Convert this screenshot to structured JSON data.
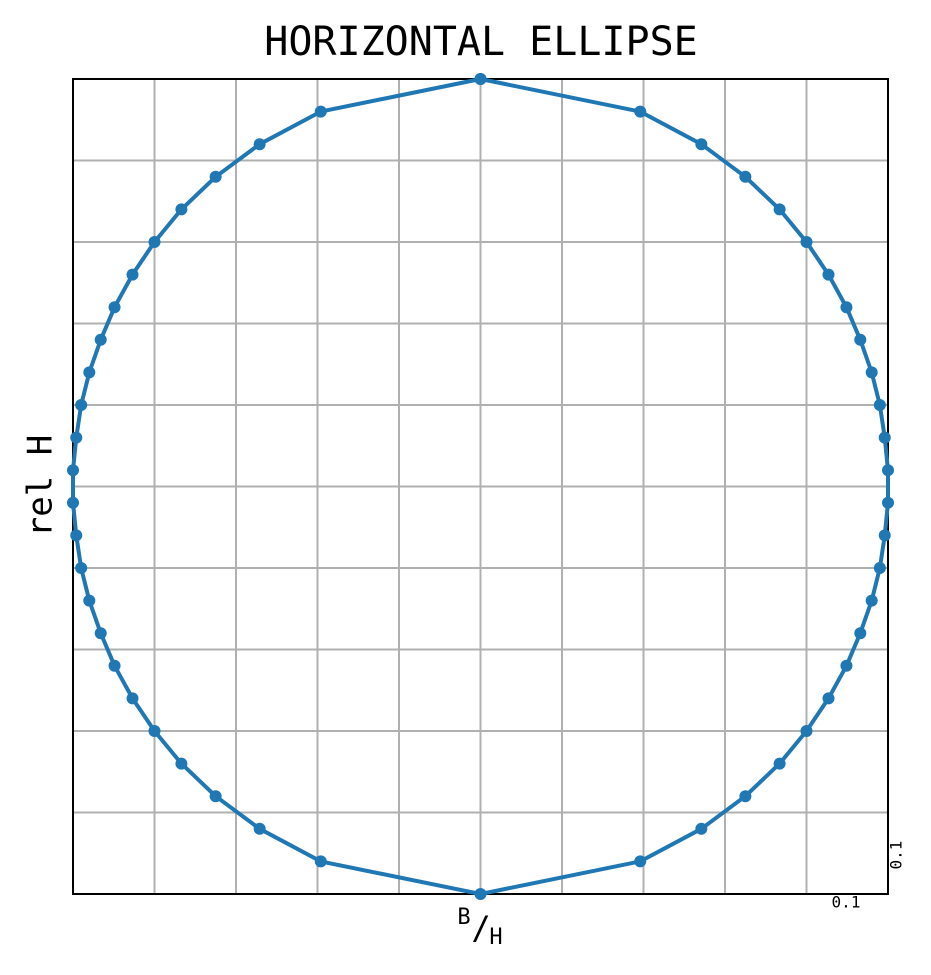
{
  "chart_data": {
    "type": "line",
    "title": "HORIZONTAL ELLIPSE",
    "ylabel": "rel H",
    "xlabel_parts": [
      "B",
      "/",
      "H"
    ],
    "annotations": [
      "0.1",
      "0.1"
    ],
    "xlim": [
      0,
      1
    ],
    "ylim": [
      0,
      1
    ],
    "xticks": [
      0,
      0.1,
      0.2,
      0.3,
      0.4,
      0.5,
      0.6,
      0.7,
      0.8,
      0.9,
      1
    ],
    "yticks": [
      0,
      0.1,
      0.2,
      0.3,
      0.4,
      0.5,
      0.6,
      0.7,
      0.8,
      0.9,
      1
    ],
    "grid": true,
    "series": [
      {
        "color": "#1f77b4",
        "x": [
          0.5,
          0.696,
          0.771,
          0.825,
          0.867,
          0.9,
          0.927,
          0.949,
          0.966,
          0.98,
          0.99,
          0.996,
          1.0,
          1.0,
          0.996,
          0.99,
          0.98,
          0.966,
          0.949,
          0.927,
          0.9,
          0.867,
          0.825,
          0.771,
          0.696,
          0.5,
          0.304,
          0.229,
          0.175,
          0.133,
          0.1,
          0.073,
          0.051,
          0.034,
          0.02,
          0.01,
          0.004,
          0.0,
          0.0,
          0.004,
          0.01,
          0.02,
          0.034,
          0.051,
          0.073,
          0.1,
          0.133,
          0.175,
          0.229,
          0.304,
          0.5
        ],
        "values": [
          1,
          0.96,
          0.92,
          0.88,
          0.84,
          0.8,
          0.76,
          0.72,
          0.68,
          0.64,
          0.6,
          0.56,
          0.52,
          0.48,
          0.44,
          0.4,
          0.36,
          0.32,
          0.28,
          0.24,
          0.2,
          0.16,
          0.12,
          0.08,
          0.04,
          0,
          0.04,
          0.08,
          0.12,
          0.16,
          0.2,
          0.24,
          0.28,
          0.32,
          0.36,
          0.4,
          0.44,
          0.48,
          0.52,
          0.56,
          0.6,
          0.64,
          0.68,
          0.72,
          0.76,
          0.8,
          0.84,
          0.88,
          0.92,
          0.96,
          1
        ]
      }
    ]
  }
}
